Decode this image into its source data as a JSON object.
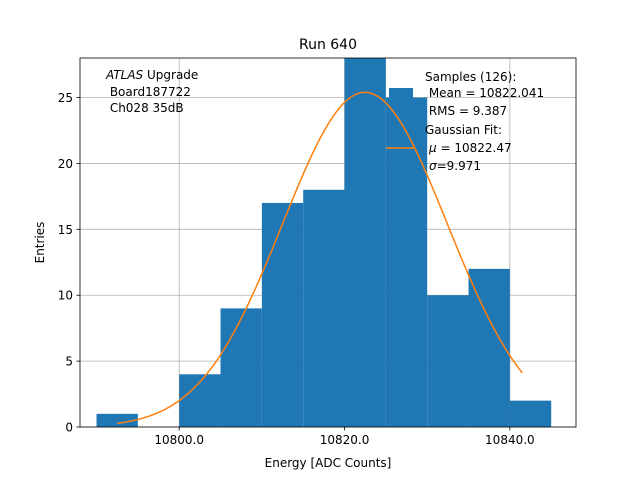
{
  "chart_data": {
    "type": "bar",
    "title": "Run 640",
    "xlabel": "Energy [ADC Counts]",
    "ylabel": "Entries",
    "xlim": [
      10788.0,
      10848.0
    ],
    "ylim": [
      0,
      28.0
    ],
    "x_ticks": [
      10800.0,
      10820.0,
      10840.0
    ],
    "x_tick_labels": [
      "10800.0",
      "10820.0",
      "10840.0"
    ],
    "y_ticks": [
      0,
      5,
      10,
      15,
      20,
      25
    ],
    "y_tick_labels": [
      "0",
      "5",
      "10",
      "15",
      "20",
      "25"
    ],
    "grid": true,
    "bins": [
      {
        "x0": 10790,
        "x1": 10795,
        "count": 1
      },
      {
        "x0": 10795,
        "x1": 10800,
        "count": 0
      },
      {
        "x0": 10800,
        "x1": 10805,
        "count": 4
      },
      {
        "x0": 10805,
        "x1": 10810,
        "count": 9
      },
      {
        "x0": 10810,
        "x1": 10815,
        "count": 17
      },
      {
        "x0": 10815,
        "x1": 10820,
        "count": 18
      },
      {
        "x0": 10820,
        "x1": 10825,
        "count": 28
      },
      {
        "x0": 10825,
        "x1": 10830,
        "count": 25
      },
      {
        "x0": 10830,
        "x1": 10835,
        "count": 10
      },
      {
        "x0": 10835,
        "x1": 10840,
        "count": 12
      },
      {
        "x0": 10840,
        "x1": 10845,
        "count": 2
      }
    ],
    "gaussian_fit": {
      "mu": 10822.47,
      "sigma": 9.971,
      "amplitude": 25.4,
      "x_range": [
        10792.5,
        10841.5
      ]
    },
    "colors": {
      "histogram": "#1f77b4",
      "fit": "#ff7f0e"
    },
    "annotation": {
      "atlas_italic": "ATLAS",
      "atlas_rest": " Upgrade",
      "line2": " Board187722",
      "line3": " Ch028 35dB"
    },
    "legend": {
      "placement": "top-right",
      "samples_title": "Samples (126):",
      "mean": " Mean = 10822.041",
      "rms": " RMS = 9.387",
      "fit_title": "Gaussian Fit:",
      "mu_symbol": "μ",
      "mu_value": " = 10822.47",
      "sigma_symbol": "σ",
      "sigma_value": "=9.971"
    }
  }
}
